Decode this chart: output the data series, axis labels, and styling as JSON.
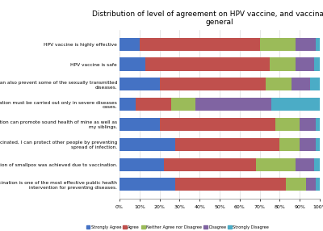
{
  "title": "Distribution of level of agreement on HPV vaccine, and vaccination in\ngeneral",
  "categories": [
    "HPV vaccine is highly effective",
    "HPV vaccine is safe",
    "Vaccine can also prevent some of the sexually transmitted\ndiseases.",
    "Vaccination must be carried out only in severe diseases\ncases.",
    "Vaccination can promote sound health of mine as well as\nmy siblings.",
    "If I am vaccinated, I can protect other people by preventing\nspread of infection.",
    "Eradication of smallpox was achieved due to vaccination.",
    "Vaccination is one of the most effective public health\nintervention for preventing diseases."
  ],
  "series": {
    "Strongly Agree": [
      10,
      13,
      20,
      8,
      20,
      28,
      22,
      28
    ],
    "Agree": [
      60,
      62,
      53,
      18,
      58,
      52,
      46,
      55
    ],
    "Neither Agree nor Disagree": [
      18,
      13,
      13,
      12,
      12,
      10,
      20,
      10
    ],
    "Disagree": [
      10,
      9,
      9,
      38,
      8,
      8,
      9,
      5
    ],
    "Strongly Disagree": [
      2,
      3,
      5,
      24,
      2,
      2,
      3,
      2
    ]
  },
  "colors": {
    "Strongly Agree": "#4472C4",
    "Agree": "#C0504D",
    "Neither Agree nor Disagree": "#9BBB59",
    "Disagree": "#8064A2",
    "Strongly Disagree": "#4BACC6"
  }
}
